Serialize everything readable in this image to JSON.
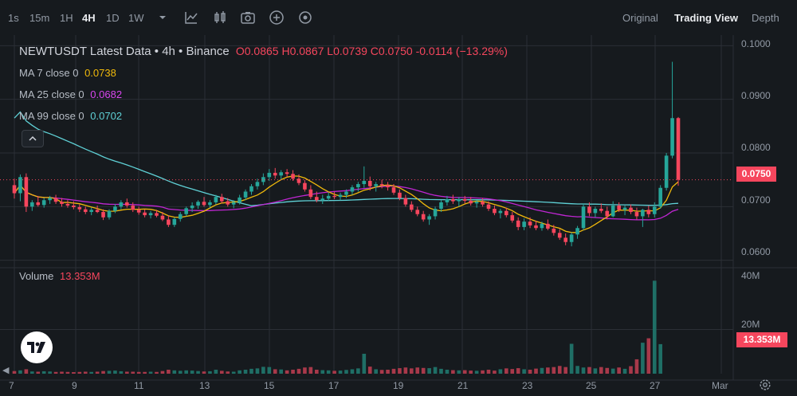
{
  "toolbar": {
    "timeframes": [
      "1s",
      "15m",
      "1H",
      "4H",
      "1D",
      "1W"
    ],
    "active_timeframe": "4H",
    "icons": [
      "chevron-down-icon",
      "indicators-icon",
      "candle-type-icon",
      "camera-icon",
      "add-icon",
      "settings-icon"
    ],
    "views": [
      "Original",
      "Trading View",
      "Depth"
    ],
    "active_view": "Trading View"
  },
  "legend": {
    "symbol": "NEWTUSDT Latest Data",
    "interval": " • 4h • Binance",
    "ohlc": "O0.0865  H0.0867  L0.0739  C0.0750  -0.0114 (−13.29%)",
    "ma7_label": "MA 7 close 0",
    "ma7_value": "0.0738",
    "ma25_label": "MA 25 close 0",
    "ma25_value": "0.0682",
    "ma99_label": "MA 99 close 0",
    "ma99_value": "0.0702",
    "volume_label": "Volume",
    "volume_value": "13.353M"
  },
  "price_axis": {
    "ticks": [
      "0.1000",
      "0.0900",
      "0.0800",
      "0.0700",
      "0.0600"
    ],
    "current_price": "0.0750"
  },
  "volume_axis": {
    "ticks": [
      "40M",
      "20M"
    ],
    "current_volume": "13.353M"
  },
  "date_axis": {
    "ticks": [
      "7",
      "9",
      "11",
      "13",
      "15",
      "17",
      "19",
      "21",
      "23",
      "25",
      "27",
      "Mar"
    ]
  },
  "colors": {
    "up": "#26a69a",
    "down": "#f6465d",
    "ma7": "#f0b90b",
    "ma25": "#c026d3",
    "ma99": "#5fd1d6",
    "background": "#161a1e",
    "grid": "#2b2f36"
  },
  "chart_data": {
    "type": "candlestick",
    "symbol": "NEWTUSDT",
    "interval": "4h",
    "price_range": [
      0.0595,
      0.1005
    ],
    "volume_range": [
      0,
      45
    ],
    "volume_unit": "M",
    "candles_ohlc": [
      [
        0.074,
        0.0752,
        0.0715,
        0.0725
      ],
      [
        0.0725,
        0.076,
        0.071,
        0.0755
      ],
      [
        0.0755,
        0.0762,
        0.069,
        0.07
      ],
      [
        0.07,
        0.0712,
        0.0692,
        0.0708
      ],
      [
        0.0708,
        0.072,
        0.07,
        0.0703
      ],
      [
        0.0703,
        0.0716,
        0.0698,
        0.0712
      ],
      [
        0.0712,
        0.072,
        0.0705,
        0.0716
      ],
      [
        0.0716,
        0.0722,
        0.0705,
        0.0709
      ],
      [
        0.0709,
        0.0716,
        0.07,
        0.0705
      ],
      [
        0.0705,
        0.0712,
        0.0698,
        0.0702
      ],
      [
        0.0702,
        0.071,
        0.0695,
        0.0699
      ],
      [
        0.0699,
        0.0704,
        0.069,
        0.0695
      ],
      [
        0.0695,
        0.07,
        0.0686,
        0.069
      ],
      [
        0.069,
        0.0698,
        0.0684,
        0.0694
      ],
      [
        0.0694,
        0.0702,
        0.0688,
        0.069
      ],
      [
        0.069,
        0.0695,
        0.0675,
        0.068
      ],
      [
        0.068,
        0.0695,
        0.0676,
        0.0692
      ],
      [
        0.0692,
        0.0705,
        0.0688,
        0.07
      ],
      [
        0.07,
        0.0712,
        0.0695,
        0.0708
      ],
      [
        0.0708,
        0.0715,
        0.0698,
        0.0702
      ],
      [
        0.0702,
        0.0708,
        0.069,
        0.0694
      ],
      [
        0.0694,
        0.07,
        0.0685,
        0.0689
      ],
      [
        0.0689,
        0.0695,
        0.068,
        0.0684
      ],
      [
        0.0684,
        0.0692,
        0.0678,
        0.0688
      ],
      [
        0.0688,
        0.0694,
        0.068,
        0.0683
      ],
      [
        0.0683,
        0.069,
        0.0673,
        0.0676
      ],
      [
        0.0676,
        0.0684,
        0.0662,
        0.0666
      ],
      [
        0.0666,
        0.068,
        0.0662,
        0.0677
      ],
      [
        0.0677,
        0.069,
        0.0672,
        0.0686
      ],
      [
        0.0686,
        0.07,
        0.0682,
        0.0697
      ],
      [
        0.0697,
        0.0708,
        0.069,
        0.0702
      ],
      [
        0.0702,
        0.0712,
        0.0696,
        0.0709
      ],
      [
        0.0709,
        0.0718,
        0.07,
        0.0703
      ],
      [
        0.0703,
        0.0712,
        0.0698,
        0.0708
      ],
      [
        0.0708,
        0.0722,
        0.0704,
        0.0718
      ],
      [
        0.0718,
        0.0724,
        0.0706,
        0.071
      ],
      [
        0.071,
        0.0716,
        0.07,
        0.0704
      ],
      [
        0.0704,
        0.0712,
        0.0697,
        0.0708
      ],
      [
        0.0708,
        0.0722,
        0.0704,
        0.0717
      ],
      [
        0.0717,
        0.0732,
        0.0712,
        0.0728
      ],
      [
        0.0728,
        0.0742,
        0.0722,
        0.0738
      ],
      [
        0.0738,
        0.0752,
        0.0732,
        0.0746
      ],
      [
        0.0746,
        0.0762,
        0.074,
        0.0755
      ],
      [
        0.0755,
        0.077,
        0.0748,
        0.0763
      ],
      [
        0.0763,
        0.0772,
        0.0752,
        0.0758
      ],
      [
        0.0758,
        0.0768,
        0.075,
        0.0764
      ],
      [
        0.0764,
        0.077,
        0.0755,
        0.0761
      ],
      [
        0.0761,
        0.0768,
        0.0748,
        0.0752
      ],
      [
        0.0752,
        0.076,
        0.074,
        0.0744
      ],
      [
        0.0744,
        0.075,
        0.0728,
        0.0732
      ],
      [
        0.0732,
        0.074,
        0.0714,
        0.0718
      ],
      [
        0.0718,
        0.0728,
        0.0708,
        0.0712
      ],
      [
        0.0712,
        0.0722,
        0.0705,
        0.0715
      ],
      [
        0.0715,
        0.0726,
        0.071,
        0.072
      ],
      [
        0.072,
        0.0728,
        0.0714,
        0.0718
      ],
      [
        0.0718,
        0.0726,
        0.0712,
        0.0722
      ],
      [
        0.0722,
        0.0732,
        0.0716,
        0.0728
      ],
      [
        0.0728,
        0.074,
        0.0722,
        0.0736
      ],
      [
        0.0736,
        0.0746,
        0.0728,
        0.0742
      ],
      [
        0.0742,
        0.0775,
        0.0735,
        0.0748
      ],
      [
        0.0748,
        0.0756,
        0.073,
        0.0738
      ],
      [
        0.0738,
        0.0746,
        0.0728,
        0.0742
      ],
      [
        0.0742,
        0.075,
        0.0734,
        0.074
      ],
      [
        0.074,
        0.0746,
        0.073,
        0.0736
      ],
      [
        0.0736,
        0.0742,
        0.0722,
        0.0726
      ],
      [
        0.0726,
        0.0732,
        0.0712,
        0.0716
      ],
      [
        0.0716,
        0.0722,
        0.07,
        0.0704
      ],
      [
        0.0704,
        0.071,
        0.069,
        0.0694
      ],
      [
        0.0694,
        0.07,
        0.0682,
        0.0686
      ],
      [
        0.0686,
        0.0692,
        0.0672,
        0.0676
      ],
      [
        0.0676,
        0.0686,
        0.0666,
        0.0682
      ],
      [
        0.0682,
        0.07,
        0.0676,
        0.0696
      ],
      [
        0.0696,
        0.0712,
        0.069,
        0.0708
      ],
      [
        0.0708,
        0.072,
        0.0702,
        0.0714
      ],
      [
        0.0714,
        0.0722,
        0.0705,
        0.071
      ],
      [
        0.071,
        0.0718,
        0.07,
        0.0714
      ],
      [
        0.0714,
        0.072,
        0.0706,
        0.0711
      ],
      [
        0.0711,
        0.0718,
        0.0702,
        0.0706
      ],
      [
        0.0706,
        0.0712,
        0.0698,
        0.0709
      ],
      [
        0.0709,
        0.0716,
        0.07,
        0.0704
      ],
      [
        0.0704,
        0.071,
        0.0692,
        0.0696
      ],
      [
        0.0696,
        0.0702,
        0.0684,
        0.0688
      ],
      [
        0.0688,
        0.0696,
        0.0678,
        0.0692
      ],
      [
        0.0692,
        0.0698,
        0.068,
        0.0684
      ],
      [
        0.0684,
        0.069,
        0.067,
        0.0674
      ],
      [
        0.0674,
        0.068,
        0.0656,
        0.0662
      ],
      [
        0.0662,
        0.0678,
        0.0656,
        0.0672
      ],
      [
        0.0672,
        0.068,
        0.066,
        0.0665
      ],
      [
        0.0665,
        0.0674,
        0.0656,
        0.066
      ],
      [
        0.066,
        0.0672,
        0.0655,
        0.0668
      ],
      [
        0.0668,
        0.0676,
        0.0656,
        0.0659
      ],
      [
        0.0659,
        0.0666,
        0.0646,
        0.0651
      ],
      [
        0.0651,
        0.0658,
        0.0638,
        0.0642
      ],
      [
        0.0642,
        0.065,
        0.0628,
        0.0634
      ],
      [
        0.0634,
        0.0652,
        0.0626,
        0.0648
      ],
      [
        0.0648,
        0.0664,
        0.064,
        0.066
      ],
      [
        0.066,
        0.0706,
        0.0656,
        0.07
      ],
      [
        0.07,
        0.0708,
        0.0682,
        0.0688
      ],
      [
        0.0688,
        0.07,
        0.068,
        0.0696
      ],
      [
        0.0696,
        0.0706,
        0.0688,
        0.0692
      ],
      [
        0.0692,
        0.07,
        0.0676,
        0.0682
      ],
      [
        0.0682,
        0.071,
        0.068,
        0.0702
      ],
      [
        0.0702,
        0.0708,
        0.069,
        0.0694
      ],
      [
        0.0694,
        0.0702,
        0.0684,
        0.0698
      ],
      [
        0.0698,
        0.0704,
        0.0686,
        0.069
      ],
      [
        0.069,
        0.0698,
        0.0676,
        0.0682
      ],
      [
        0.0682,
        0.0696,
        0.0662,
        0.0694
      ],
      [
        0.0694,
        0.0702,
        0.068,
        0.0686
      ],
      [
        0.0686,
        0.0708,
        0.068,
        0.07
      ],
      [
        0.07,
        0.074,
        0.0696,
        0.0735
      ],
      [
        0.0735,
        0.08,
        0.073,
        0.0795
      ],
      [
        0.0795,
        0.097,
        0.079,
        0.0865
      ],
      [
        0.0865,
        0.0867,
        0.0739,
        0.075
      ]
    ],
    "volume_millions": [
      1.2,
      1.5,
      2.0,
      1.0,
      0.9,
      1.1,
      1.0,
      0.8,
      0.9,
      0.8,
      0.7,
      0.8,
      0.9,
      0.8,
      0.9,
      1.2,
      1.3,
      1.4,
      1.1,
      0.9,
      0.9,
      0.8,
      0.8,
      0.9,
      0.8,
      1.2,
      1.8,
      1.5,
      1.3,
      1.5,
      1.4,
      1.2,
      1.0,
      1.1,
      1.8,
      1.3,
      1.0,
      0.9,
      1.5,
      1.8,
      2.2,
      2.4,
      3.1,
      3.0,
      2.0,
      1.9,
      1.5,
      1.8,
      2.2,
      2.8,
      3.0,
      1.8,
      1.6,
      1.5,
      1.3,
      1.4,
      1.7,
      2.0,
      2.4,
      9.0,
      3.2,
      2.0,
      1.7,
      1.8,
      2.2,
      2.5,
      2.8,
      2.4,
      2.8,
      2.6,
      2.5,
      3.0,
      2.2,
      1.8,
      1.6,
      1.5,
      1.6,
      1.4,
      1.3,
      1.5,
      1.8,
      1.4,
      2.0,
      2.4,
      2.1,
      2.5,
      2.0,
      1.8,
      2.3,
      2.6,
      2.8,
      3.0,
      3.5,
      3.0,
      13.5,
      3.5,
      2.8,
      3.0,
      2.4,
      3.0,
      2.6,
      2.3,
      2.8,
      2.2,
      3.4,
      6.5,
      14.0,
      16.0,
      42.0,
      13.353
    ]
  }
}
